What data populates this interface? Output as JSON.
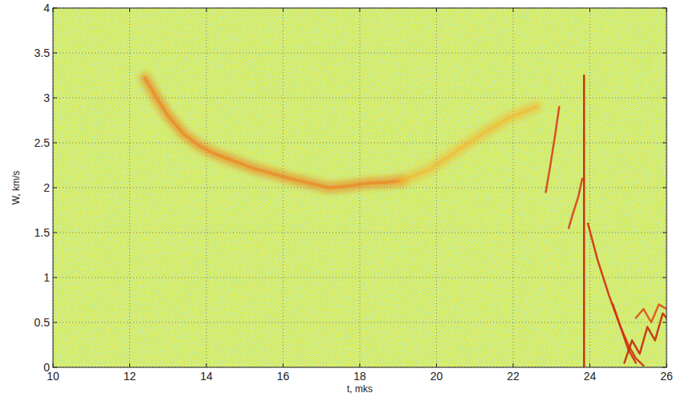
{
  "chart_data": {
    "type": "line",
    "x_label": "t, mks",
    "y_label": "W, km/s",
    "xlim": [
      10,
      26
    ],
    "ylim": [
      0,
      4
    ],
    "xticks": [
      10,
      12,
      14,
      16,
      18,
      20,
      22,
      24,
      26
    ],
    "yticks": [
      0,
      0.5,
      1,
      1.5,
      2,
      2.5,
      3,
      3.5,
      4
    ],
    "grid": true,
    "series": [
      {
        "color": "#ef7a1a",
        "line_style": "glow",
        "x": [
          12.4,
          12.7,
          13.0,
          13.4,
          13.8,
          14.2,
          14.7,
          15.2,
          15.7,
          16.2,
          16.7,
          17.2,
          17.7,
          18.2,
          18.7,
          19.1
        ],
        "values": [
          3.22,
          3.0,
          2.8,
          2.6,
          2.47,
          2.38,
          2.3,
          2.22,
          2.16,
          2.1,
          2.05,
          2.0,
          2.02,
          2.05,
          2.06,
          2.08
        ]
      },
      {
        "color": "#f2b830",
        "line_style": "glow",
        "x": [
          19.1,
          19.8,
          20.5,
          21.2,
          21.9,
          22.6
        ],
        "values": [
          2.08,
          2.2,
          2.4,
          2.6,
          2.78,
          2.9
        ]
      },
      {
        "color": "#d8401a",
        "line_style": "solid",
        "x": [
          22.85,
          22.95,
          23.1,
          23.2
        ],
        "values": [
          1.95,
          2.2,
          2.6,
          2.9
        ]
      },
      {
        "color": "#d8401a",
        "line_style": "solid",
        "x": [
          23.45,
          23.55,
          23.7,
          23.8
        ],
        "values": [
          1.55,
          1.7,
          1.9,
          2.1
        ]
      },
      {
        "color": "#c8200c",
        "line_style": "solid",
        "x": [
          23.85,
          23.85
        ],
        "values": [
          0,
          3.25
        ]
      },
      {
        "color": "#d03010",
        "line_style": "solid",
        "x": [
          23.95,
          24.2,
          24.5,
          24.8,
          25.0,
          25.2
        ],
        "values": [
          1.6,
          1.2,
          0.8,
          0.45,
          0.2,
          0.05
        ]
      },
      {
        "color": "#d03010",
        "line_style": "solid",
        "x": [
          24.6,
          24.8,
          25.0,
          25.2,
          25.4
        ],
        "values": [
          0.7,
          0.45,
          0.25,
          0.1,
          0.02
        ]
      },
      {
        "color": "#c82a0c",
        "line_style": "solid",
        "x": [
          24.9,
          25.1,
          25.3,
          25.5,
          25.7,
          25.9,
          26.0
        ],
        "values": [
          0.05,
          0.3,
          0.15,
          0.45,
          0.3,
          0.6,
          0.55
        ]
      },
      {
        "color": "#e0501a",
        "line_style": "solid",
        "x": [
          25.2,
          25.4,
          25.6,
          25.8,
          26.0
        ],
        "values": [
          0.55,
          0.65,
          0.5,
          0.7,
          0.65
        ]
      }
    ]
  }
}
